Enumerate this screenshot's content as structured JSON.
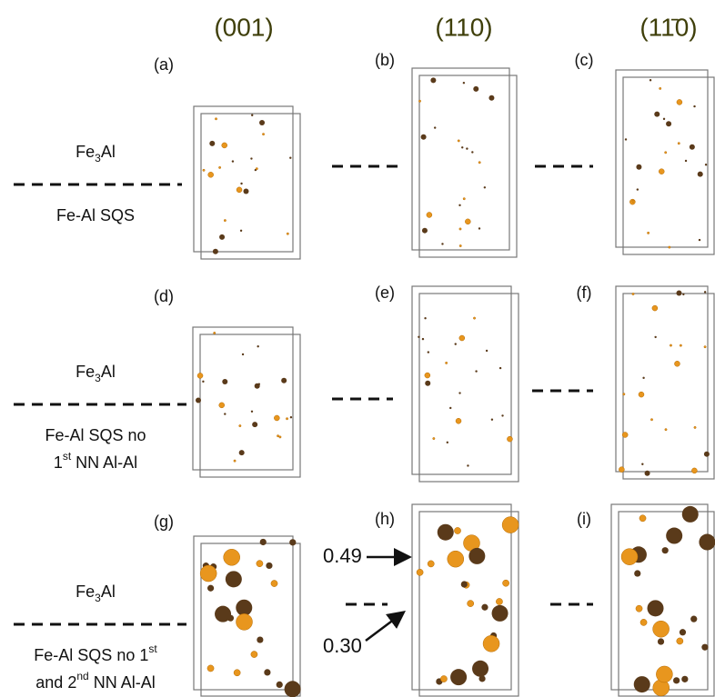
{
  "columns": [
    "(001)",
    "(110)",
    "(11̄0)"
  ],
  "panels": [
    "(a)",
    "(b)",
    "(c)",
    "(d)",
    "(e)",
    "(f)",
    "(g)",
    "(h)",
    "(i)"
  ],
  "rows": [
    {
      "top": {
        "pre": "Fe",
        "sub": "3",
        "post": "Al"
      },
      "bottom": [
        {
          "text": "Fe-Al SQS"
        }
      ]
    },
    {
      "top": {
        "pre": "Fe",
        "sub": "3",
        "post": "Al"
      },
      "bottom": [
        {
          "text": "Fe-Al SQS no"
        },
        {
          "text": "1",
          "sup": "st",
          "post": " NN Al-Al"
        }
      ]
    },
    {
      "top": {
        "pre": "Fe",
        "sub": "3",
        "post": "Al"
      },
      "bottom": [
        {
          "text": "Fe-Al SQS no 1",
          "sup": "st"
        },
        {
          "text": "and 2",
          "sup": "nd",
          "post": " NN Al-Al"
        }
      ]
    }
  ],
  "annotations": [
    "0.49",
    "0.30"
  ]
}
